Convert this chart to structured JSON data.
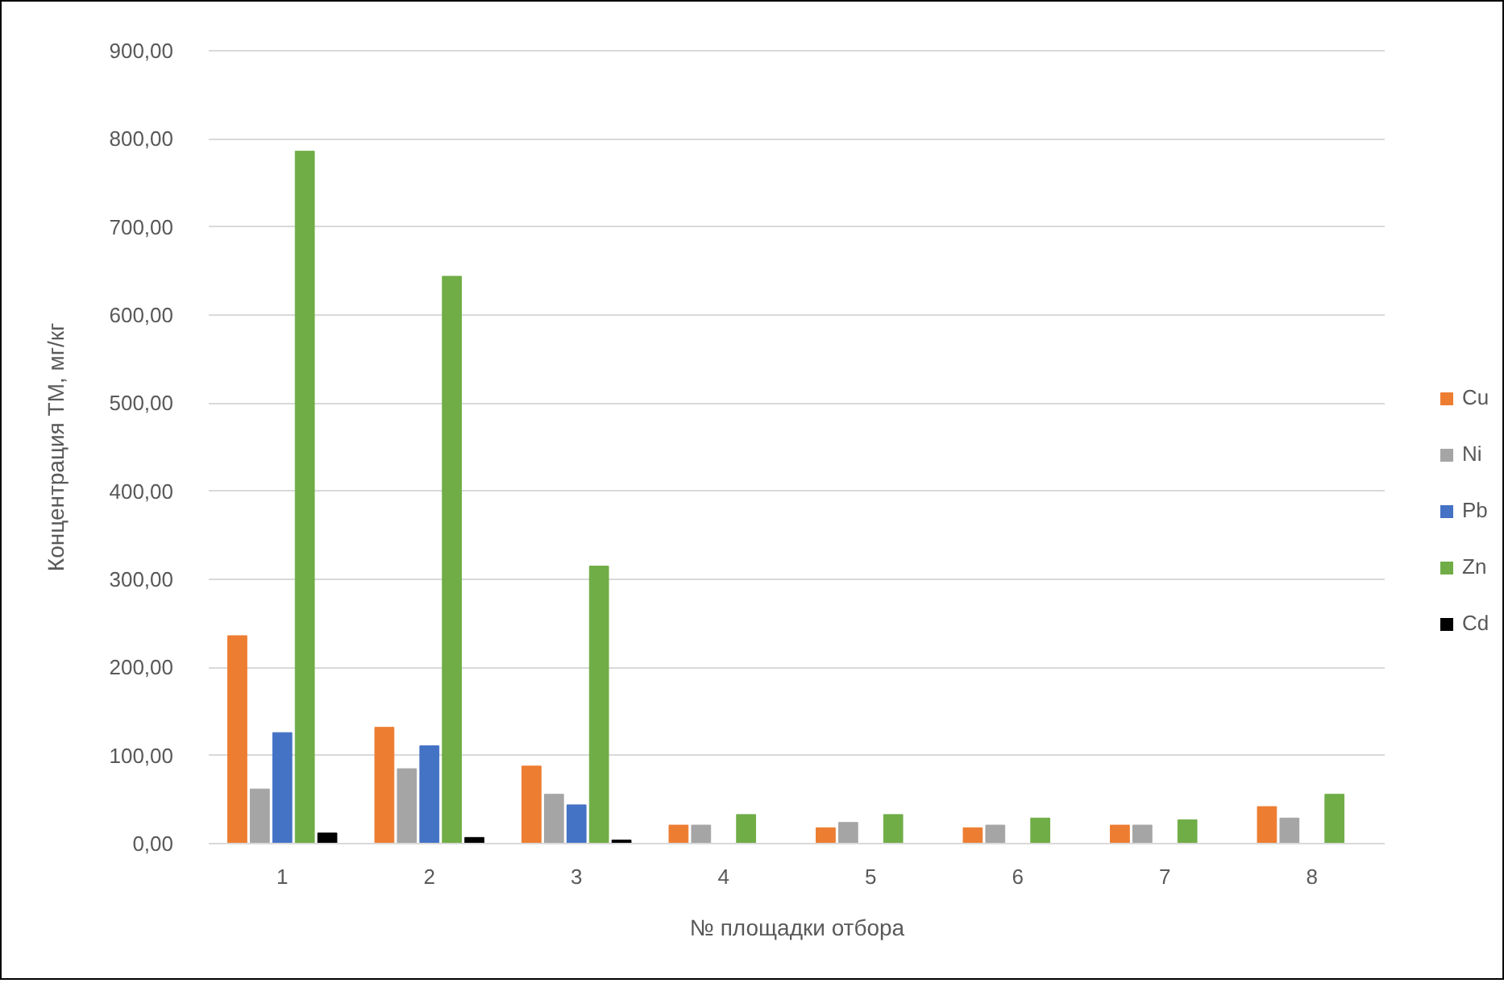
{
  "chart_data": {
    "type": "bar",
    "xlabel": "№ площадки отбора",
    "ylabel": "Концентрация ТМ, мг/кг",
    "categories": [
      "1",
      "2",
      "3",
      "4",
      "5",
      "6",
      "7",
      "8"
    ],
    "series": [
      {
        "name": "Cu",
        "color": "#ed7d31",
        "values": [
          236,
          132,
          88,
          21,
          18,
          18,
          21,
          42
        ]
      },
      {
        "name": "Ni",
        "color": "#a5a5a5",
        "values": [
          62,
          85,
          56,
          21,
          24,
          21,
          21,
          29
        ]
      },
      {
        "name": "Pb",
        "color": "#4472c4",
        "values": [
          126,
          111,
          44,
          null,
          null,
          null,
          null,
          null
        ]
      },
      {
        "name": "Zn",
        "color": "#70ad47",
        "values": [
          786,
          644,
          315,
          33,
          33,
          29,
          27,
          56
        ]
      },
      {
        "name": "Cd",
        "color": "#000000",
        "values": [
          12,
          7,
          4,
          null,
          null,
          null,
          null,
          null
        ]
      }
    ],
    "ylim": [
      0,
      900
    ],
    "yticks": [
      {
        "value": 0,
        "label": "0,00"
      },
      {
        "value": 100,
        "label": "100,00"
      },
      {
        "value": 200,
        "label": "200,00"
      },
      {
        "value": 300,
        "label": "300,00"
      },
      {
        "value": 400,
        "label": "400,00"
      },
      {
        "value": 500,
        "label": "500,00"
      },
      {
        "value": 600,
        "label": "600,00"
      },
      {
        "value": 700,
        "label": "700,00"
      },
      {
        "value": 800,
        "label": "800,00"
      },
      {
        "value": 900,
        "label": "900,00"
      }
    ],
    "grid": "y",
    "legend": "right"
  }
}
